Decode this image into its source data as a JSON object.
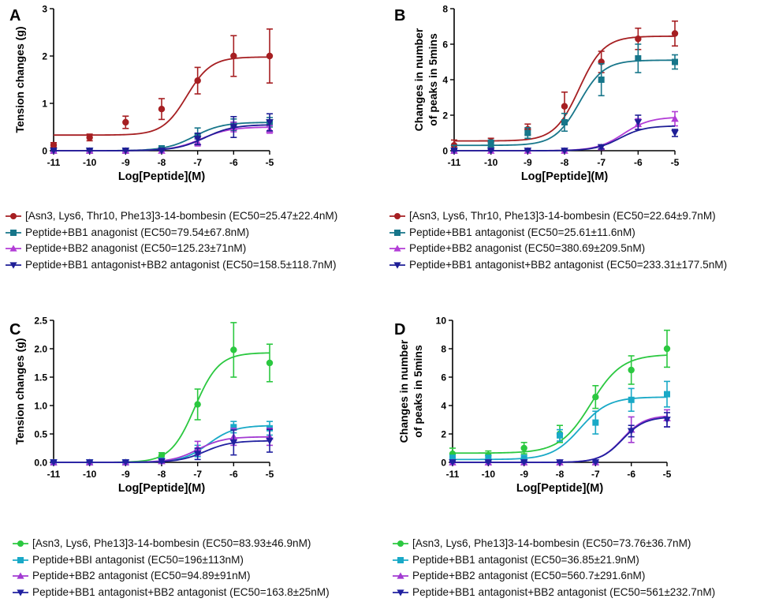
{
  "colors": {
    "red": "#a61f22",
    "teal": "#17768a",
    "magenta": "#b23cd6",
    "navy": "#1e1e96",
    "green": "#2bc840",
    "cyan": "#19a9c7",
    "purple": "#a23ad2",
    "blue": "#2020a0"
  },
  "chart_data": [
    {
      "panel": "A",
      "type": "line",
      "xlabel": "Log[Peptide](M)",
      "ylabel": "Tension changes (g)",
      "xlim": [
        -11,
        -5
      ],
      "ylim": [
        0,
        3
      ],
      "xticks": [
        "-11",
        "-10",
        "-9",
        "-8",
        "-7",
        "-6",
        "-5"
      ],
      "yticks": [
        "0",
        "1",
        "2",
        "3"
      ],
      "x": [
        -11,
        -10,
        -9,
        -8,
        -7,
        -6,
        -5
      ],
      "series": [
        {
          "name": "[Asn3, Lys6, Thr10, Phe13]3-14-bombesin (EC50=25.47±22.4nM)",
          "marker": "circle",
          "color": "red",
          "values": [
            0.12,
            0.28,
            0.6,
            0.88,
            1.48,
            2.0,
            2.0
          ],
          "errors": [
            0.05,
            0.07,
            0.13,
            0.22,
            0.28,
            0.43,
            0.57
          ],
          "fit": {
            "bottom": 0.33,
            "top": 1.98,
            "logec50": -7.3,
            "hill": 1.3
          }
        },
        {
          "name": "Peptide+BB1 anagonist (EC50=79.54±67.8nM)",
          "marker": "square",
          "color": "teal",
          "values": [
            0.0,
            0.0,
            0.0,
            0.05,
            0.3,
            0.55,
            0.6
          ],
          "errors": [
            0.01,
            0.01,
            0.01,
            0.05,
            0.18,
            0.12,
            0.1
          ],
          "fit": {
            "bottom": 0.0,
            "top": 0.6,
            "logec50": -7.1,
            "hill": 1.1
          }
        },
        {
          "name": "Peptide+BB2 anagonist (EC50=125.23±71nM)",
          "marker": "triangle-up",
          "color": "magenta",
          "values": [
            0.0,
            0.0,
            0.0,
            0.0,
            0.18,
            0.5,
            0.45
          ],
          "errors": [
            0.01,
            0.01,
            0.01,
            0.02,
            0.08,
            0.1,
            0.08
          ],
          "fit": {
            "bottom": 0.0,
            "top": 0.5,
            "logec50": -6.9,
            "hill": 1.1
          }
        },
        {
          "name": "Peptide+BB1 antagonist+BB2 antagonist (EC50=158.5±118.7nM)",
          "marker": "triangle-down",
          "color": "navy",
          "values": [
            0.0,
            0.0,
            0.0,
            0.0,
            0.25,
            0.5,
            0.6
          ],
          "errors": [
            0.01,
            0.01,
            0.01,
            0.03,
            0.12,
            0.22,
            0.18
          ],
          "fit": {
            "bottom": 0.0,
            "top": 0.55,
            "logec50": -6.8,
            "hill": 1.1
          }
        }
      ]
    },
    {
      "panel": "B",
      "type": "line",
      "xlabel": "Log[Peptide](M)",
      "ylabel": "Changes in number of peaks in 5mins",
      "ylabel_lines": [
        "Changes in number",
        "of peaks in 5mins"
      ],
      "xlim": [
        -11,
        -5
      ],
      "ylim": [
        0,
        8
      ],
      "xticks": [
        "-11",
        "-10",
        "-9",
        "-8",
        "-7",
        "-6",
        "-5"
      ],
      "yticks": [
        "0",
        "2",
        "4",
        "6",
        "8"
      ],
      "x": [
        -11,
        -10,
        -9,
        -8,
        -7,
        -6,
        -5
      ],
      "series": [
        {
          "name": "[Asn3, Lys6, Thr10, Phe13]3-14-bombesin (EC50=22.64±9.7nM)",
          "marker": "circle",
          "color": "red",
          "values": [
            0.3,
            0.5,
            1.2,
            2.5,
            5.0,
            6.3,
            6.6
          ],
          "errors": [
            0.3,
            0.2,
            0.3,
            0.8,
            0.6,
            0.6,
            0.7
          ],
          "fit": {
            "bottom": 0.55,
            "top": 6.45,
            "logec50": -7.6,
            "hill": 1.3
          }
        },
        {
          "name": "Peptide+BB1 antagonist (EC50=25.61±11.6nM)",
          "marker": "square",
          "color": "teal",
          "values": [
            0.0,
            0.4,
            1.0,
            1.6,
            4.0,
            5.2,
            5.0
          ],
          "errors": [
            0.3,
            0.2,
            0.3,
            0.5,
            0.9,
            0.8,
            0.4
          ],
          "fit": {
            "bottom": 0.3,
            "top": 5.1,
            "logec50": -7.6,
            "hill": 1.3
          }
        },
        {
          "name": "Peptide+BB2 anagonist (EC50=380.69±209.5nM)",
          "marker": "triangle-up",
          "color": "magenta",
          "values": [
            0.0,
            0.0,
            0.0,
            0.0,
            0.2,
            1.5,
            1.8
          ],
          "errors": [
            0.05,
            0.05,
            0.05,
            0.05,
            0.1,
            0.3,
            0.4
          ],
          "fit": {
            "bottom": 0.0,
            "top": 1.9,
            "logec50": -6.4,
            "hill": 1.2
          }
        },
        {
          "name": "Peptide+BB1 antagonist+BB2 antagonist (EC50=233.31±177.5nM)",
          "marker": "triangle-down",
          "color": "navy",
          "values": [
            0.0,
            0.0,
            0.0,
            0.0,
            0.2,
            1.6,
            1.0
          ],
          "errors": [
            0.05,
            0.05,
            0.05,
            0.05,
            0.1,
            0.4,
            0.2
          ],
          "fit": {
            "bottom": 0.0,
            "top": 1.4,
            "logec50": -6.5,
            "hill": 1.3
          }
        }
      ]
    },
    {
      "panel": "C",
      "type": "line",
      "xlabel": "Log[Peptide](M)",
      "ylabel": "Tension changes (g)",
      "xlim": [
        -11,
        -5
      ],
      "ylim": [
        0,
        2.5
      ],
      "xticks": [
        "-11",
        "-10",
        "-9",
        "-8",
        "-7",
        "-6",
        "-5"
      ],
      "yticks": [
        "0.0",
        "0.5",
        "1.0",
        "1.5",
        "2.0",
        "2.5"
      ],
      "x": [
        -11,
        -10,
        -9,
        -8,
        -7,
        -6,
        -5
      ],
      "series": [
        {
          "name": "[Asn3, Lys6, Phe13]3-14-bombesin (EC50=83.93±46.9nM)",
          "marker": "circle",
          "color": "green",
          "values": [
            0.0,
            0.0,
            0.0,
            0.12,
            1.02,
            1.98,
            1.75
          ],
          "errors": [
            0.02,
            0.02,
            0.02,
            0.05,
            0.27,
            0.48,
            0.33
          ],
          "fit": {
            "bottom": 0.0,
            "top": 1.93,
            "logec50": -7.08,
            "hill": 1.3
          }
        },
        {
          "name": "Peptide+BBI antagonist (EC50=196±113nM)",
          "marker": "square",
          "color": "cyan",
          "values": [
            0.0,
            0.0,
            0.0,
            0.03,
            0.2,
            0.62,
            0.6
          ],
          "errors": [
            0.01,
            0.01,
            0.01,
            0.03,
            0.1,
            0.1,
            0.12
          ],
          "fit": {
            "bottom": 0.0,
            "top": 0.65,
            "logec50": -6.7,
            "hill": 1.2
          }
        },
        {
          "name": "Peptide+BB2 antagonist (EC50=94.89±91nM)",
          "marker": "triangle-up",
          "color": "purple",
          "values": [
            0.0,
            0.0,
            0.0,
            0.02,
            0.25,
            0.45,
            0.45
          ],
          "errors": [
            0.01,
            0.01,
            0.01,
            0.03,
            0.12,
            0.15,
            0.15
          ],
          "fit": {
            "bottom": 0.0,
            "top": 0.45,
            "logec50": -7.0,
            "hill": 1.2
          }
        },
        {
          "name": "Peptide+BB1 antagonist+BB2 antagonist (EC50=163.8±25nM)",
          "marker": "triangle-down",
          "color": "blue",
          "values": [
            0.0,
            0.0,
            0.0,
            0.02,
            0.15,
            0.35,
            0.38
          ],
          "errors": [
            0.01,
            0.01,
            0.01,
            0.03,
            0.1,
            0.22,
            0.2
          ],
          "fit": {
            "bottom": 0.0,
            "top": 0.38,
            "logec50": -6.8,
            "hill": 1.2
          }
        }
      ]
    },
    {
      "panel": "D",
      "type": "line",
      "xlabel": "Log[Peptide](M)",
      "ylabel": "Changes in number of peaks in 5mins",
      "ylabel_lines": [
        "Changes in number",
        "of peaks in 5mins"
      ],
      "xlim": [
        -11,
        -5
      ],
      "ylim": [
        0,
        10
      ],
      "xticks": [
        "-11",
        "-10",
        "-9",
        "-8",
        "-7",
        "-6",
        "-5"
      ],
      "yticks": [
        "0",
        "2",
        "4",
        "6",
        "8",
        "10"
      ],
      "x": [
        -11,
        -10,
        -9,
        -8,
        -7,
        -6,
        -5
      ],
      "series": [
        {
          "name": "[Asn3, Lys6, Phe13]3-14-bombesin (EC50=73.76±36.7nM)",
          "marker": "circle",
          "color": "green",
          "values": [
            0.6,
            0.5,
            1.0,
            2.0,
            4.6,
            6.5,
            8.0
          ],
          "errors": [
            0.4,
            0.3,
            0.4,
            0.6,
            0.8,
            1.0,
            1.3
          ],
          "fit": {
            "bottom": 0.65,
            "top": 7.6,
            "logec50": -7.13,
            "hill": 1.0
          }
        },
        {
          "name": "Peptide+BB1 antagonist (EC50=36.85±21.9nM)",
          "marker": "square",
          "color": "cyan",
          "values": [
            0.3,
            0.3,
            0.3,
            1.9,
            2.8,
            4.4,
            4.8
          ],
          "errors": [
            0.2,
            0.2,
            0.2,
            0.4,
            0.8,
            0.8,
            0.9
          ],
          "fit": {
            "bottom": 0.2,
            "top": 4.6,
            "logec50": -7.43,
            "hill": 1.1
          }
        },
        {
          "name": "Peptide+BB2 antagonist (EC50=560.7±291.6nM)",
          "marker": "triangle-up",
          "color": "purple",
          "values": [
            0.0,
            0.0,
            0.0,
            0.0,
            0.0,
            2.3,
            3.1
          ],
          "errors": [
            0.05,
            0.05,
            0.05,
            0.05,
            0.05,
            0.9,
            0.6
          ],
          "fit": {
            "bottom": 0.0,
            "top": 3.3,
            "logec50": -6.25,
            "hill": 1.4
          }
        },
        {
          "name": "Peptide+BB1 antagonist+BB2 antagonist (EC50=561±232.7nM)",
          "marker": "triangle-down",
          "color": "blue",
          "values": [
            0.0,
            0.0,
            0.0,
            0.0,
            0.0,
            2.2,
            3.0
          ],
          "errors": [
            0.05,
            0.05,
            0.05,
            0.05,
            0.05,
            0.4,
            0.5
          ],
          "fit": {
            "bottom": 0.0,
            "top": 3.2,
            "logec50": -6.25,
            "hill": 1.4
          }
        }
      ]
    }
  ]
}
